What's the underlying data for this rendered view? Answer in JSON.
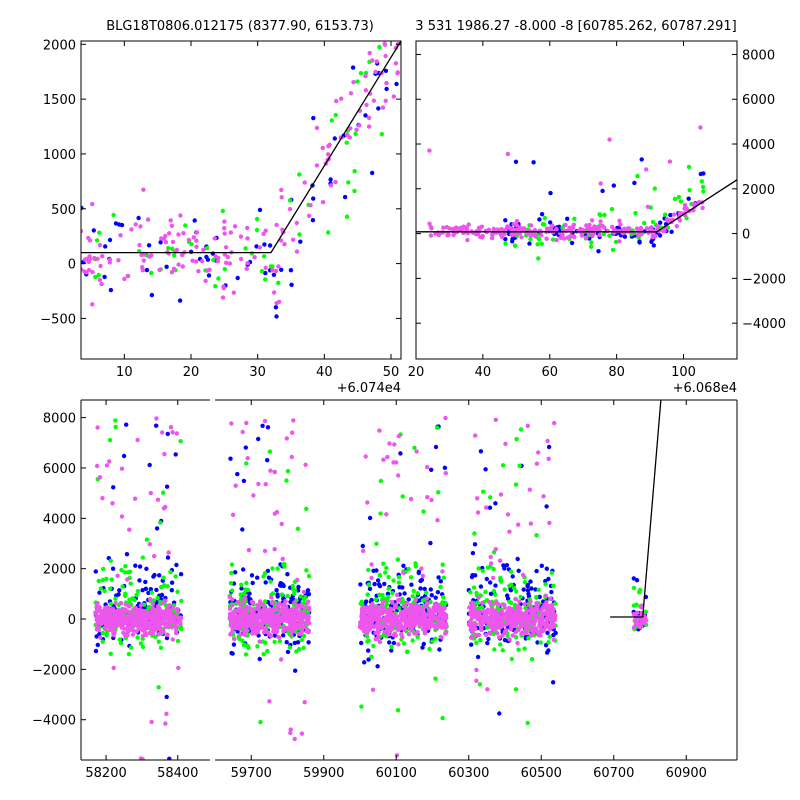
{
  "figure": {
    "title_left": "BLG18T0806.012175 (8377.90, 6153.73)",
    "title_right": "3 531 1986.27 -8.000 -8 [60785.262, 60787.291]"
  },
  "colors": {
    "blue": "#0000ff",
    "green": "#00ff00",
    "magenta": "#ee55ee",
    "model": "#000000"
  },
  "chart_data": [
    {
      "id": "zoom_left",
      "type": "scatter",
      "xlim": [
        3.5,
        51.5
      ],
      "ylim": [
        -870,
        2030
      ],
      "xticks": [
        10,
        20,
        30,
        40,
        50
      ],
      "xtick_labels": [
        "10",
        "20",
        "30",
        "40",
        "50"
      ],
      "yticks": [
        -500,
        0,
        500,
        1000,
        1500,
        2000
      ],
      "ytick_labels": [
        "−500",
        "0",
        "500",
        "1000",
        "1500",
        "2000"
      ],
      "offset_label": "+6.074e4",
      "model": {
        "x": [
          3.5,
          32,
          51.5
        ],
        "y": [
          100,
          100,
          2030
        ]
      },
      "series": [
        {
          "name": "blue",
          "color": "blue",
          "n": 70,
          "base": 100,
          "rise_start": 32,
          "rise_end": 51.5,
          "rise_top": 2000,
          "noise": 450
        },
        {
          "name": "green",
          "color": "green",
          "n": 55,
          "base": 100,
          "rise_start": 32,
          "rise_end": 51.5,
          "rise_top": 2000,
          "noise": 450
        },
        {
          "name": "magenta",
          "color": "magenta",
          "n": 180,
          "base": 100,
          "rise_start": 32,
          "rise_end": 51.5,
          "rise_top": 2000,
          "noise": 330
        }
      ]
    },
    {
      "id": "zoom_right",
      "type": "scatter",
      "xlim": [
        20,
        116
      ],
      "ylim": [
        -5600,
        8600
      ],
      "xticks": [
        20,
        40,
        60,
        80,
        100
      ],
      "xtick_labels": [
        "20",
        "40",
        "60",
        "80",
        "100"
      ],
      "yticks": [
        -4000,
        -2000,
        0,
        2000,
        4000,
        6000,
        8000
      ],
      "ytick_labels": [
        "−4000",
        "−2000",
        "0",
        "2000",
        "4000",
        "6000",
        "8000"
      ],
      "offset_label": "+6.068e4",
      "model": {
        "x": [
          20,
          92,
          116
        ],
        "y": [
          80,
          80,
          2400
        ]
      },
      "series": [
        {
          "name": "blue",
          "color": "blue",
          "n": 90,
          "xmin": 46,
          "xmax": 106,
          "base": 100,
          "rise_start": 92,
          "rise_top": 2000,
          "noise": 550
        },
        {
          "name": "green",
          "color": "green",
          "n": 70,
          "xmin": 46,
          "xmax": 106,
          "base": 100,
          "rise_start": 92,
          "rise_top": 2000,
          "noise": 700
        },
        {
          "name": "magenta",
          "color": "magenta",
          "n": 260,
          "xmin": 24,
          "xmax": 106,
          "base": 100,
          "rise_start": 92,
          "rise_top": 1500,
          "noise": 260
        }
      ]
    },
    {
      "id": "full_lightcurve",
      "type": "scatter",
      "ylim": [
        -5600,
        8700
      ],
      "yticks": [
        -4000,
        -2000,
        0,
        2000,
        4000,
        6000,
        8000
      ],
      "ytick_labels": [
        "−4000",
        "−2000",
        "0",
        "2000",
        "4000",
        "6000",
        "8000"
      ],
      "segments": [
        {
          "xlim": [
            58130,
            58490
          ],
          "xticks": [
            58200,
            58400
          ],
          "xtick_labels": [
            "58200",
            "58400"
          ],
          "seasons": [
            {
              "x": [
                58170,
                58410
              ],
              "n": 900,
              "spread": 1000
            }
          ]
        },
        {
          "xlim": [
            59600,
            61040
          ],
          "xticks": [
            59700,
            59900,
            60100,
            60300,
            60500,
            60700,
            60900
          ],
          "xtick_labels": [
            "59700",
            "59900",
            "60100",
            "60300",
            "60500",
            "60700",
            "60900"
          ],
          "seasons": [
            {
              "x": [
                59640,
                59860
              ],
              "n": 900,
              "spread": 1200
            },
            {
              "x": [
                60000,
                60240
              ],
              "n": 900,
              "spread": 1200
            },
            {
              "x": [
                60300,
                60540
              ],
              "n": 900,
              "spread": 1200
            },
            {
              "x": [
                60755,
                60790
              ],
              "n": 70,
              "spread": 700
            }
          ],
          "model": {
            "x": [
              60690,
              60780,
              60830
            ],
            "y": [
              80,
              80,
              8700
            ]
          }
        }
      ]
    }
  ]
}
